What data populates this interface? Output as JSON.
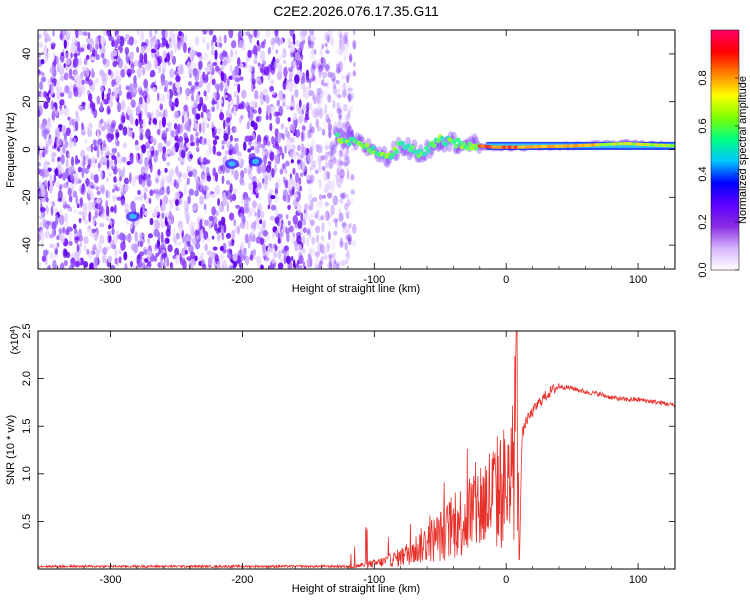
{
  "chart_data": [
    {
      "type": "heatmap",
      "title": "C2E2.2026.076.17.35.G11",
      "xlabel": "Height of straight line (km)",
      "ylabel": "Frequency (Hz)",
      "xlim": [
        -355,
        128
      ],
      "ylim": [
        -50,
        50
      ],
      "xticks": [
        -300,
        -200,
        -100,
        0,
        100
      ],
      "xtick_labels": [
        "-300",
        "-200",
        "-100",
        "0",
        "100"
      ],
      "yticks": [
        -40,
        -20,
        0,
        20,
        40
      ],
      "ytick_labels": [
        "-40",
        "-20",
        "0",
        "20",
        "40"
      ],
      "colorbar": {
        "label": "Normalized spectral amplitude",
        "range": [
          0,
          1
        ],
        "ticks": [
          0.0,
          0.2,
          0.4,
          0.6,
          0.8
        ],
        "tick_labels": [
          "0.0",
          "0.2",
          "0.4",
          "0.6",
          "0.8"
        ],
        "colors": [
          "#ffffff",
          "#d8b4ff",
          "#8a2be2",
          "#5a00ff",
          "#0000ff",
          "#00c8ff",
          "#00ff80",
          "#80ff00",
          "#ffff00",
          "#ff8000",
          "#ff0000",
          "#ff0066"
        ]
      },
      "description_features": {
        "noise_region_x": [
          -355,
          -125
        ],
        "signal_start_x": -130,
        "ridge_center_hz": 1.5,
        "ridge_points": [
          {
            "x": -130,
            "f": 5
          },
          {
            "x": -115,
            "f": 3
          },
          {
            "x": -100,
            "f": 0
          },
          {
            "x": -90,
            "f": -4
          },
          {
            "x": -80,
            "f": 2
          },
          {
            "x": -65,
            "f": -2
          },
          {
            "x": -50,
            "f": 4
          },
          {
            "x": -30,
            "f": 2
          },
          {
            "x": -10,
            "f": 1
          },
          {
            "x": 10,
            "f": 1
          },
          {
            "x": 50,
            "f": 1.5
          },
          {
            "x": 90,
            "f": 2.5
          },
          {
            "x": 128,
            "f": 1.5
          }
        ],
        "isolated_blobs": [
          {
            "x": -208,
            "f": -6
          },
          {
            "x": -190,
            "f": -5
          },
          {
            "x": -283,
            "f": -28
          }
        ]
      }
    },
    {
      "type": "line",
      "xlabel": "Height of straight line (km)",
      "ylabel": "SNR (10 * v/v)",
      "exponent_label": "(x10",
      "exponent_power": "4",
      "exponent_close": ")",
      "xlim": [
        -355,
        128
      ],
      "ylim": [
        0,
        2.5
      ],
      "xticks": [
        -300,
        -200,
        -100,
        0,
        100
      ],
      "xtick_labels": [
        "-300",
        "-200",
        "-100",
        "0",
        "100"
      ],
      "yticks": [
        0.5,
        1.0,
        1.5,
        2.0,
        2.5
      ],
      "ytick_labels": [
        "0.5",
        "1.0",
        "1.5",
        "2.0",
        "2.5"
      ],
      "series": [
        {
          "name": "SNR",
          "color": "#e8302a",
          "x": [
            -355,
            -300,
            -250,
            -200,
            -150,
            -120,
            -100,
            -90,
            -80,
            -70,
            -60,
            -50,
            -40,
            -30,
            -20,
            -10,
            0,
            5,
            8,
            10,
            12,
            15,
            20,
            25,
            30,
            35,
            40,
            50,
            60,
            70,
            80,
            90,
            100,
            110,
            120,
            128
          ],
          "y": [
            0.02,
            0.02,
            0.02,
            0.02,
            0.02,
            0.03,
            0.08,
            0.12,
            0.18,
            0.28,
            0.4,
            0.5,
            0.62,
            0.8,
            0.95,
            1.1,
            1.25,
            1.3,
            2.5,
            0.1,
            1.4,
            1.55,
            1.65,
            1.75,
            1.82,
            1.88,
            1.92,
            1.9,
            1.86,
            1.84,
            1.8,
            1.78,
            1.78,
            1.76,
            1.74,
            1.72
          ]
        }
      ]
    }
  ]
}
